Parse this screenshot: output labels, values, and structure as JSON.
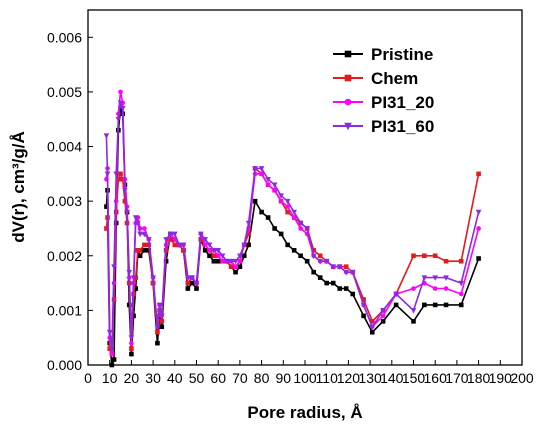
{
  "chart_data": {
    "type": "line",
    "title": "",
    "xlabel": "Pore radius, Å",
    "ylabel": "dV(r), cm³/g/Å",
    "xlim": [
      0,
      200
    ],
    "ylim": [
      0,
      0.0065
    ],
    "xticks": [
      0,
      10,
      20,
      30,
      40,
      50,
      60,
      70,
      80,
      90,
      100,
      110,
      120,
      130,
      140,
      150,
      160,
      170,
      180,
      190,
      200
    ],
    "yticks": [
      0.0,
      0.001,
      0.002,
      0.003,
      0.004,
      0.005,
      0.006
    ],
    "ytick_labels": [
      "0.000",
      "0.001",
      "0.002",
      "0.003",
      "0.004",
      "0.005",
      "0.006"
    ],
    "grid": false,
    "legend_position": "top-right",
    "series": [
      {
        "name": "Pristine",
        "color": "#000000",
        "marker": "square",
        "x": [
          8.5,
          9,
          10,
          11,
          12,
          13,
          14,
          15,
          16,
          17,
          18,
          19,
          20,
          21,
          22,
          23,
          24,
          26,
          28,
          30,
          32,
          33,
          34,
          36,
          38,
          40,
          42,
          44,
          46,
          48,
          50,
          52,
          54,
          56,
          58,
          60,
          62,
          64,
          66,
          68,
          70,
          72,
          74,
          77,
          80,
          83,
          86,
          89,
          92,
          95,
          98,
          101,
          104,
          107,
          110,
          113,
          116,
          119,
          122,
          127,
          131,
          136,
          142,
          150,
          155,
          160,
          165,
          172,
          180
        ],
        "y": [
          0.0029,
          0.0032,
          0.0004,
          0,
          0.0001,
          0.0026,
          0.0043,
          0.0047,
          0.0046,
          0.0033,
          0.0028,
          0.0011,
          0.0002,
          0.0009,
          0.0014,
          0.0021,
          0.002,
          0.0021,
          0.0021,
          0.0015,
          0.0004,
          0.0009,
          0.0007,
          0.0019,
          0.0024,
          0.0023,
          0.0022,
          0.0021,
          0.0014,
          0.0015,
          0.0014,
          0.0023,
          0.0021,
          0.002,
          0.0019,
          0.0019,
          0.0019,
          0.0019,
          0.0018,
          0.0017,
          0.0018,
          0.002,
          0.0022,
          0.003,
          0.0028,
          0.0027,
          0.0025,
          0.0024,
          0.0022,
          0.0021,
          0.002,
          0.0019,
          0.0017,
          0.0016,
          0.0015,
          0.0015,
          0.0014,
          0.0014,
          0.0013,
          0.0009,
          0.0006,
          0.0008,
          0.0011,
          0.0008,
          0.0011,
          0.0011,
          0.0011,
          0.0011,
          0.00195
        ]
      },
      {
        "name": "Chem",
        "color": "#e41a1c",
        "marker": "square",
        "x": [
          8.5,
          9,
          10,
          11,
          12,
          13,
          14,
          15,
          16,
          17,
          18,
          19,
          20,
          21,
          22,
          23,
          24,
          26,
          28,
          30,
          32,
          33,
          34,
          36,
          38,
          40,
          42,
          44,
          46,
          48,
          50,
          52,
          54,
          56,
          58,
          60,
          62,
          64,
          66,
          68,
          70,
          72,
          74,
          77,
          80,
          83,
          86,
          89,
          92,
          95,
          98,
          101,
          104,
          107,
          110,
          113,
          116,
          119,
          122,
          127,
          131,
          136,
          142,
          150,
          155,
          160,
          165,
          172,
          180
        ],
        "y": [
          0.0025,
          0.0027,
          0.0003,
          0.0002,
          0.0012,
          0.0028,
          0.0034,
          0.0035,
          0.0034,
          0.003,
          0.0026,
          0.0015,
          0.0003,
          0.0013,
          0.0016,
          0.0021,
          0.0021,
          0.0022,
          0.0022,
          0.0015,
          0.0006,
          0.001,
          0.0008,
          0.0021,
          0.0023,
          0.0022,
          0.0022,
          0.0021,
          0.0015,
          0.0016,
          0.0015,
          0.0023,
          0.0022,
          0.0021,
          0.002,
          0.002,
          0.0019,
          0.0019,
          0.0018,
          0.0018,
          0.0019,
          0.0022,
          0.0024,
          0.0036,
          0.0035,
          0.0033,
          0.0032,
          0.003,
          0.0028,
          0.0027,
          0.0026,
          0.0025,
          0.0021,
          0.002,
          0.0019,
          0.0018,
          0.0018,
          0.0018,
          0.0017,
          0.0012,
          0.0008,
          0.001,
          0.0013,
          0.002,
          0.002,
          0.002,
          0.0019,
          0.0019,
          0.0035
        ]
      },
      {
        "name": "PI31_20",
        "color": "#ff00ff",
        "marker": "circle",
        "x": [
          8.5,
          9,
          10,
          11,
          12,
          13,
          14,
          15,
          16,
          17,
          18,
          19,
          20,
          21,
          22,
          23,
          24,
          26,
          28,
          30,
          32,
          33,
          34,
          36,
          38,
          40,
          42,
          44,
          46,
          48,
          50,
          52,
          54,
          56,
          58,
          60,
          62,
          64,
          66,
          68,
          70,
          72,
          74,
          77,
          80,
          83,
          86,
          89,
          92,
          95,
          98,
          101,
          104,
          107,
          110,
          113,
          116,
          119,
          122,
          127,
          131,
          136,
          142,
          150,
          155,
          160,
          165,
          172,
          180
        ],
        "y": [
          0.0034,
          0.0036,
          0.0005,
          0.0002,
          0.0015,
          0.003,
          0.0046,
          0.005,
          0.0048,
          0.0034,
          0.0029,
          0.0016,
          0.0004,
          0.0015,
          0.0026,
          0.0027,
          0.0025,
          0.0025,
          0.0023,
          0.0016,
          0.0007,
          0.0011,
          0.0009,
          0.0022,
          0.0024,
          0.0023,
          0.0022,
          0.0022,
          0.0016,
          0.0016,
          0.0015,
          0.0024,
          0.0022,
          0.0021,
          0.0021,
          0.002,
          0.0019,
          0.0019,
          0.0019,
          0.0018,
          0.0019,
          0.0022,
          0.0025,
          0.0035,
          0.0035,
          0.0033,
          0.0032,
          0.003,
          0.0029,
          0.0027,
          0.0025,
          0.0024,
          0.002,
          0.0019,
          0.0019,
          0.0018,
          0.0018,
          0.0017,
          0.0017,
          0.0011,
          0.0007,
          0.0009,
          0.0013,
          0.0014,
          0.0015,
          0.0014,
          0.0014,
          0.0013,
          0.0025
        ]
      },
      {
        "name": "PI31_60",
        "color": "#8a2be2",
        "marker": "triangle-down",
        "x": [
          8.5,
          9,
          10,
          11,
          12,
          13,
          14,
          15,
          16,
          17,
          18,
          19,
          20,
          21,
          22,
          23,
          24,
          26,
          28,
          30,
          32,
          33,
          34,
          36,
          38,
          40,
          42,
          44,
          46,
          48,
          50,
          52,
          54,
          56,
          58,
          60,
          62,
          64,
          66,
          68,
          70,
          72,
          74,
          77,
          80,
          83,
          86,
          89,
          92,
          95,
          98,
          101,
          104,
          107,
          110,
          113,
          116,
          119,
          122,
          127,
          131,
          136,
          142,
          150,
          155,
          160,
          165,
          172,
          180
        ],
        "y": [
          0.0042,
          0.0035,
          0.0006,
          0.0003,
          0.0018,
          0.0035,
          0.0045,
          0.0048,
          0.0047,
          0.0032,
          0.0028,
          0.0017,
          0.0005,
          0.0016,
          0.0027,
          0.0026,
          0.0024,
          0.0024,
          0.0023,
          0.0016,
          0.0007,
          0.0011,
          0.0009,
          0.0023,
          0.0024,
          0.0024,
          0.0022,
          0.0022,
          0.0016,
          0.0016,
          0.0015,
          0.0024,
          0.0023,
          0.0022,
          0.0021,
          0.0021,
          0.002,
          0.0019,
          0.0019,
          0.0019,
          0.002,
          0.0022,
          0.0026,
          0.0036,
          0.0036,
          0.0034,
          0.0033,
          0.0031,
          0.003,
          0.0028,
          0.0026,
          0.0025,
          0.002,
          0.0019,
          0.0019,
          0.0018,
          0.0018,
          0.0017,
          0.0017,
          0.0011,
          0.0007,
          0.001,
          0.0013,
          0.001,
          0.0016,
          0.0016,
          0.0016,
          0.0015,
          0.0028
        ]
      }
    ]
  }
}
